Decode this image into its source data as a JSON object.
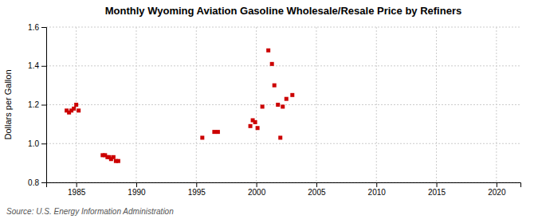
{
  "chart_data": {
    "type": "scatter",
    "title": "Monthly Wyoming Aviation Gasoline Wholesale/Resale Price by Refiners",
    "ylabel": "Dollars per Gallon",
    "source": "Source: U.S. Energy Information Administration",
    "x": [
      1984.2,
      1984.4,
      1984.6,
      1984.8,
      1985.0,
      1985.2,
      1987.2,
      1987.4,
      1987.6,
      1987.75,
      1987.9,
      1988.1,
      1988.3,
      1988.5,
      1995.5,
      1996.5,
      1996.8,
      1999.5,
      1999.7,
      1999.9,
      2000.1,
      2000.5,
      2001.0,
      2001.3,
      2001.5,
      2001.8,
      2002.0,
      2002.2,
      2002.5,
      2003.0
    ],
    "values": [
      1.17,
      1.16,
      1.17,
      1.18,
      1.2,
      1.17,
      0.94,
      0.94,
      0.93,
      0.93,
      0.92,
      0.93,
      0.91,
      0.91,
      1.03,
      1.06,
      1.06,
      1.09,
      1.12,
      1.11,
      1.08,
      1.19,
      1.48,
      1.41,
      1.3,
      1.2,
      1.03,
      1.19,
      1.23,
      1.25
    ],
    "color": "#cc0000",
    "marker": "square",
    "xlim": [
      1982.5,
      2022
    ],
    "ylim": [
      0.8,
      1.6
    ],
    "xticks": [
      1985,
      1990,
      1995,
      2000,
      2005,
      2010,
      2015,
      2020
    ],
    "yticks": [
      0.8,
      {
        "value": 1.0,
        "label": "1.0"
      },
      1.2,
      1.4,
      1.6
    ],
    "grid": true
  }
}
